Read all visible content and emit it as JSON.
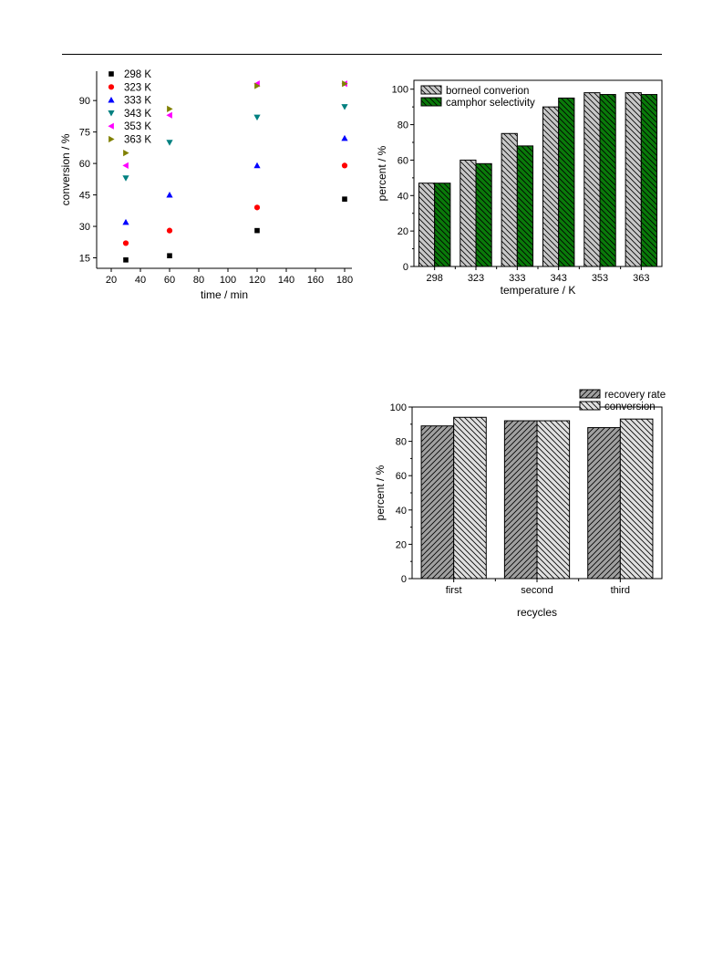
{
  "chart_data": [
    {
      "type": "scatter",
      "xlabel": "time / min",
      "ylabel": "conversion / %",
      "xlim": [
        10,
        185
      ],
      "ylim": [
        10,
        104
      ],
      "xticks": [
        20,
        40,
        60,
        80,
        100,
        120,
        140,
        160,
        180
      ],
      "yticks": [
        15,
        30,
        45,
        60,
        75,
        90
      ],
      "legend_position": "top-left",
      "series": [
        {
          "name": "298 K",
          "marker": "square",
          "color": "#000000",
          "x": [
            30,
            60,
            120,
            180
          ],
          "y": [
            14,
            16,
            28,
            43
          ]
        },
        {
          "name": "323 K",
          "marker": "circle",
          "color": "#ff0000",
          "x": [
            30,
            60,
            120,
            180
          ],
          "y": [
            22,
            28,
            39,
            59
          ]
        },
        {
          "name": "333 K",
          "marker": "triangle-up",
          "color": "#0000ff",
          "x": [
            30,
            60,
            120,
            180
          ],
          "y": [
            32,
            45,
            59,
            72
          ]
        },
        {
          "name": "343 K",
          "marker": "triangle-down",
          "color": "#008080",
          "x": [
            30,
            60,
            120,
            180
          ],
          "y": [
            53,
            70,
            82,
            87
          ]
        },
        {
          "name": "353 K",
          "marker": "triangle-left",
          "color": "#ff00ff",
          "x": [
            30,
            60,
            120,
            180
          ],
          "y": [
            59,
            83,
            98,
            98
          ]
        },
        {
          "name": "363 K",
          "marker": "triangle-right",
          "color": "#808000",
          "x": [
            30,
            60,
            120,
            180
          ],
          "y": [
            65,
            86,
            97,
            98
          ]
        }
      ]
    },
    {
      "type": "bar",
      "xlabel": "temperature / K",
      "ylabel": "percent / %",
      "categories": [
        "298",
        "323",
        "333",
        "343",
        "353",
        "363"
      ],
      "ylim": [
        0,
        105
      ],
      "yticks": [
        0,
        20,
        40,
        60,
        80,
        100
      ],
      "legend_position": "top-left",
      "series": [
        {
          "name": "borneol converion",
          "color": "#c8c8c8",
          "pattern": "hatch-back",
          "values": [
            47,
            60,
            75,
            90,
            98,
            98
          ]
        },
        {
          "name": "camphor selectivity",
          "color": "#0a7a0a",
          "pattern": "hatch-back",
          "values": [
            47,
            58,
            68,
            95,
            97,
            97
          ]
        }
      ]
    },
    {
      "type": "bar",
      "xlabel": "recycles",
      "ylabel": "percent / %",
      "categories": [
        "first",
        "second",
        "third"
      ],
      "ylim": [
        0,
        100
      ],
      "yticks": [
        0,
        20,
        40,
        60,
        80,
        100
      ],
      "legend_position": "top-right",
      "series": [
        {
          "name": "recovery rate",
          "color": "#a0a0a0",
          "pattern": "hatch-fwd",
          "values": [
            89,
            92,
            88
          ]
        },
        {
          "name": "conversion",
          "color": "#e0e0e0",
          "pattern": "hatch-back",
          "values": [
            94,
            92,
            93
          ]
        }
      ]
    }
  ]
}
